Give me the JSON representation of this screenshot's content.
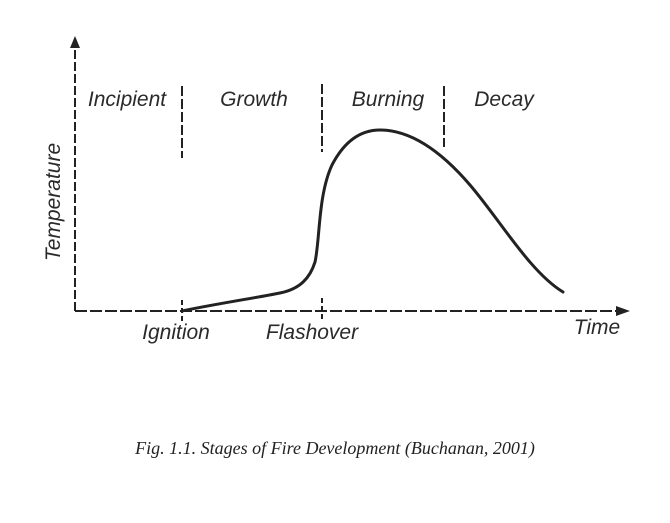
{
  "figure": {
    "y_axis_label": "Temperature",
    "x_axis_label": "Time",
    "stages": [
      {
        "label": "Incipient"
      },
      {
        "label": "Growth"
      },
      {
        "label": "Burning"
      },
      {
        "label": "Decay"
      }
    ],
    "events": [
      {
        "label": "Ignition"
      },
      {
        "label": "Flashover"
      }
    ],
    "caption": "Fig. 1.1. Stages of Fire Development (Buchanan, 2001)",
    "colors": {
      "line": "#222222",
      "text": "#2a2a2a"
    }
  }
}
